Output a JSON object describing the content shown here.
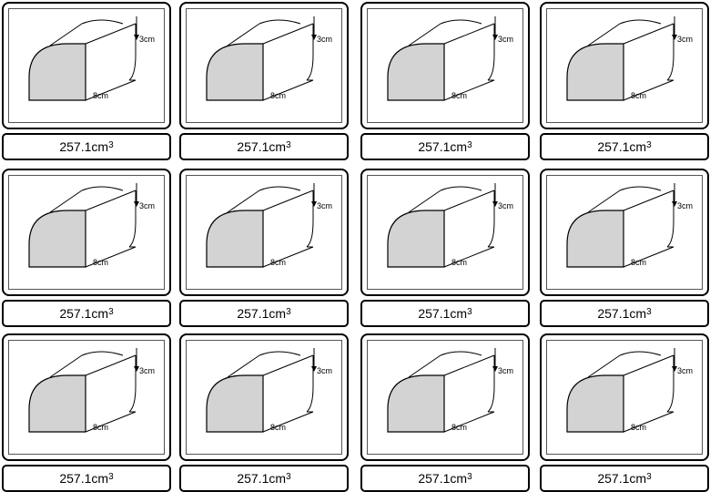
{
  "cards": [
    {
      "label_value": "257.1cm",
      "label_exp": "3",
      "dim_height": "3cm",
      "dim_length": "8cm"
    },
    {
      "label_value": "257.1cm",
      "label_exp": "3",
      "dim_height": "3cm",
      "dim_length": "8cm"
    },
    {
      "label_value": "257.1cm",
      "label_exp": "3",
      "dim_height": "3cm",
      "dim_length": "8cm"
    },
    {
      "label_value": "257.1cm",
      "label_exp": "3",
      "dim_height": "3cm",
      "dim_length": "8cm"
    },
    {
      "label_value": "257.1cm",
      "label_exp": "3",
      "dim_height": "3cm",
      "dim_length": "8cm"
    },
    {
      "label_value": "257.1cm",
      "label_exp": "3",
      "dim_height": "3cm",
      "dim_length": "8cm"
    },
    {
      "label_value": "257.1cm",
      "label_exp": "3",
      "dim_height": "3cm",
      "dim_length": "8cm"
    },
    {
      "label_value": "257.1cm",
      "label_exp": "3",
      "dim_height": "3cm",
      "dim_length": "8cm"
    },
    {
      "label_value": "257.1cm",
      "label_exp": "3",
      "dim_height": "3cm",
      "dim_length": "8cm"
    },
    {
      "label_value": "257.1cm",
      "label_exp": "3",
      "dim_height": "3cm",
      "dim_length": "8cm"
    },
    {
      "label_value": "257.1cm",
      "label_exp": "3",
      "dim_height": "3cm",
      "dim_length": "8cm"
    },
    {
      "label_value": "257.1cm",
      "label_exp": "3",
      "dim_height": "3cm",
      "dim_length": "8cm"
    }
  ],
  "colors": {
    "face_fill": "#d3d3d3",
    "stroke": "#000000",
    "background": "#ffffff"
  }
}
